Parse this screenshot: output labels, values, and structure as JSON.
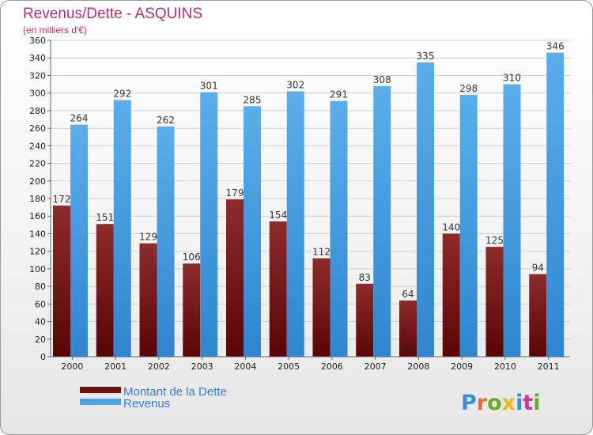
{
  "chart_data": {
    "type": "bar",
    "title": "Revenus/Dette - ASQUINS",
    "subtitle": "(en milliers d'€)",
    "categories": [
      "2000",
      "2001",
      "2002",
      "2003",
      "2004",
      "2005",
      "2006",
      "2007",
      "2008",
      "2009",
      "2010",
      "2011"
    ],
    "series": [
      {
        "name": "Montant de la Dette",
        "color": "#7a1a1a",
        "values": [
          172,
          151,
          129,
          106,
          179,
          154,
          112,
          83,
          64,
          140,
          125,
          94
        ]
      },
      {
        "name": "Revenus",
        "color": "#4aa3e8",
        "values": [
          264,
          292,
          262,
          301,
          285,
          302,
          291,
          308,
          335,
          298,
          310,
          346
        ]
      }
    ],
    "ylim": [
      0,
      360
    ],
    "ytick_step": 20,
    "grid": true,
    "legend": "bottom-left"
  },
  "logo": {
    "text": "Proxiti"
  }
}
